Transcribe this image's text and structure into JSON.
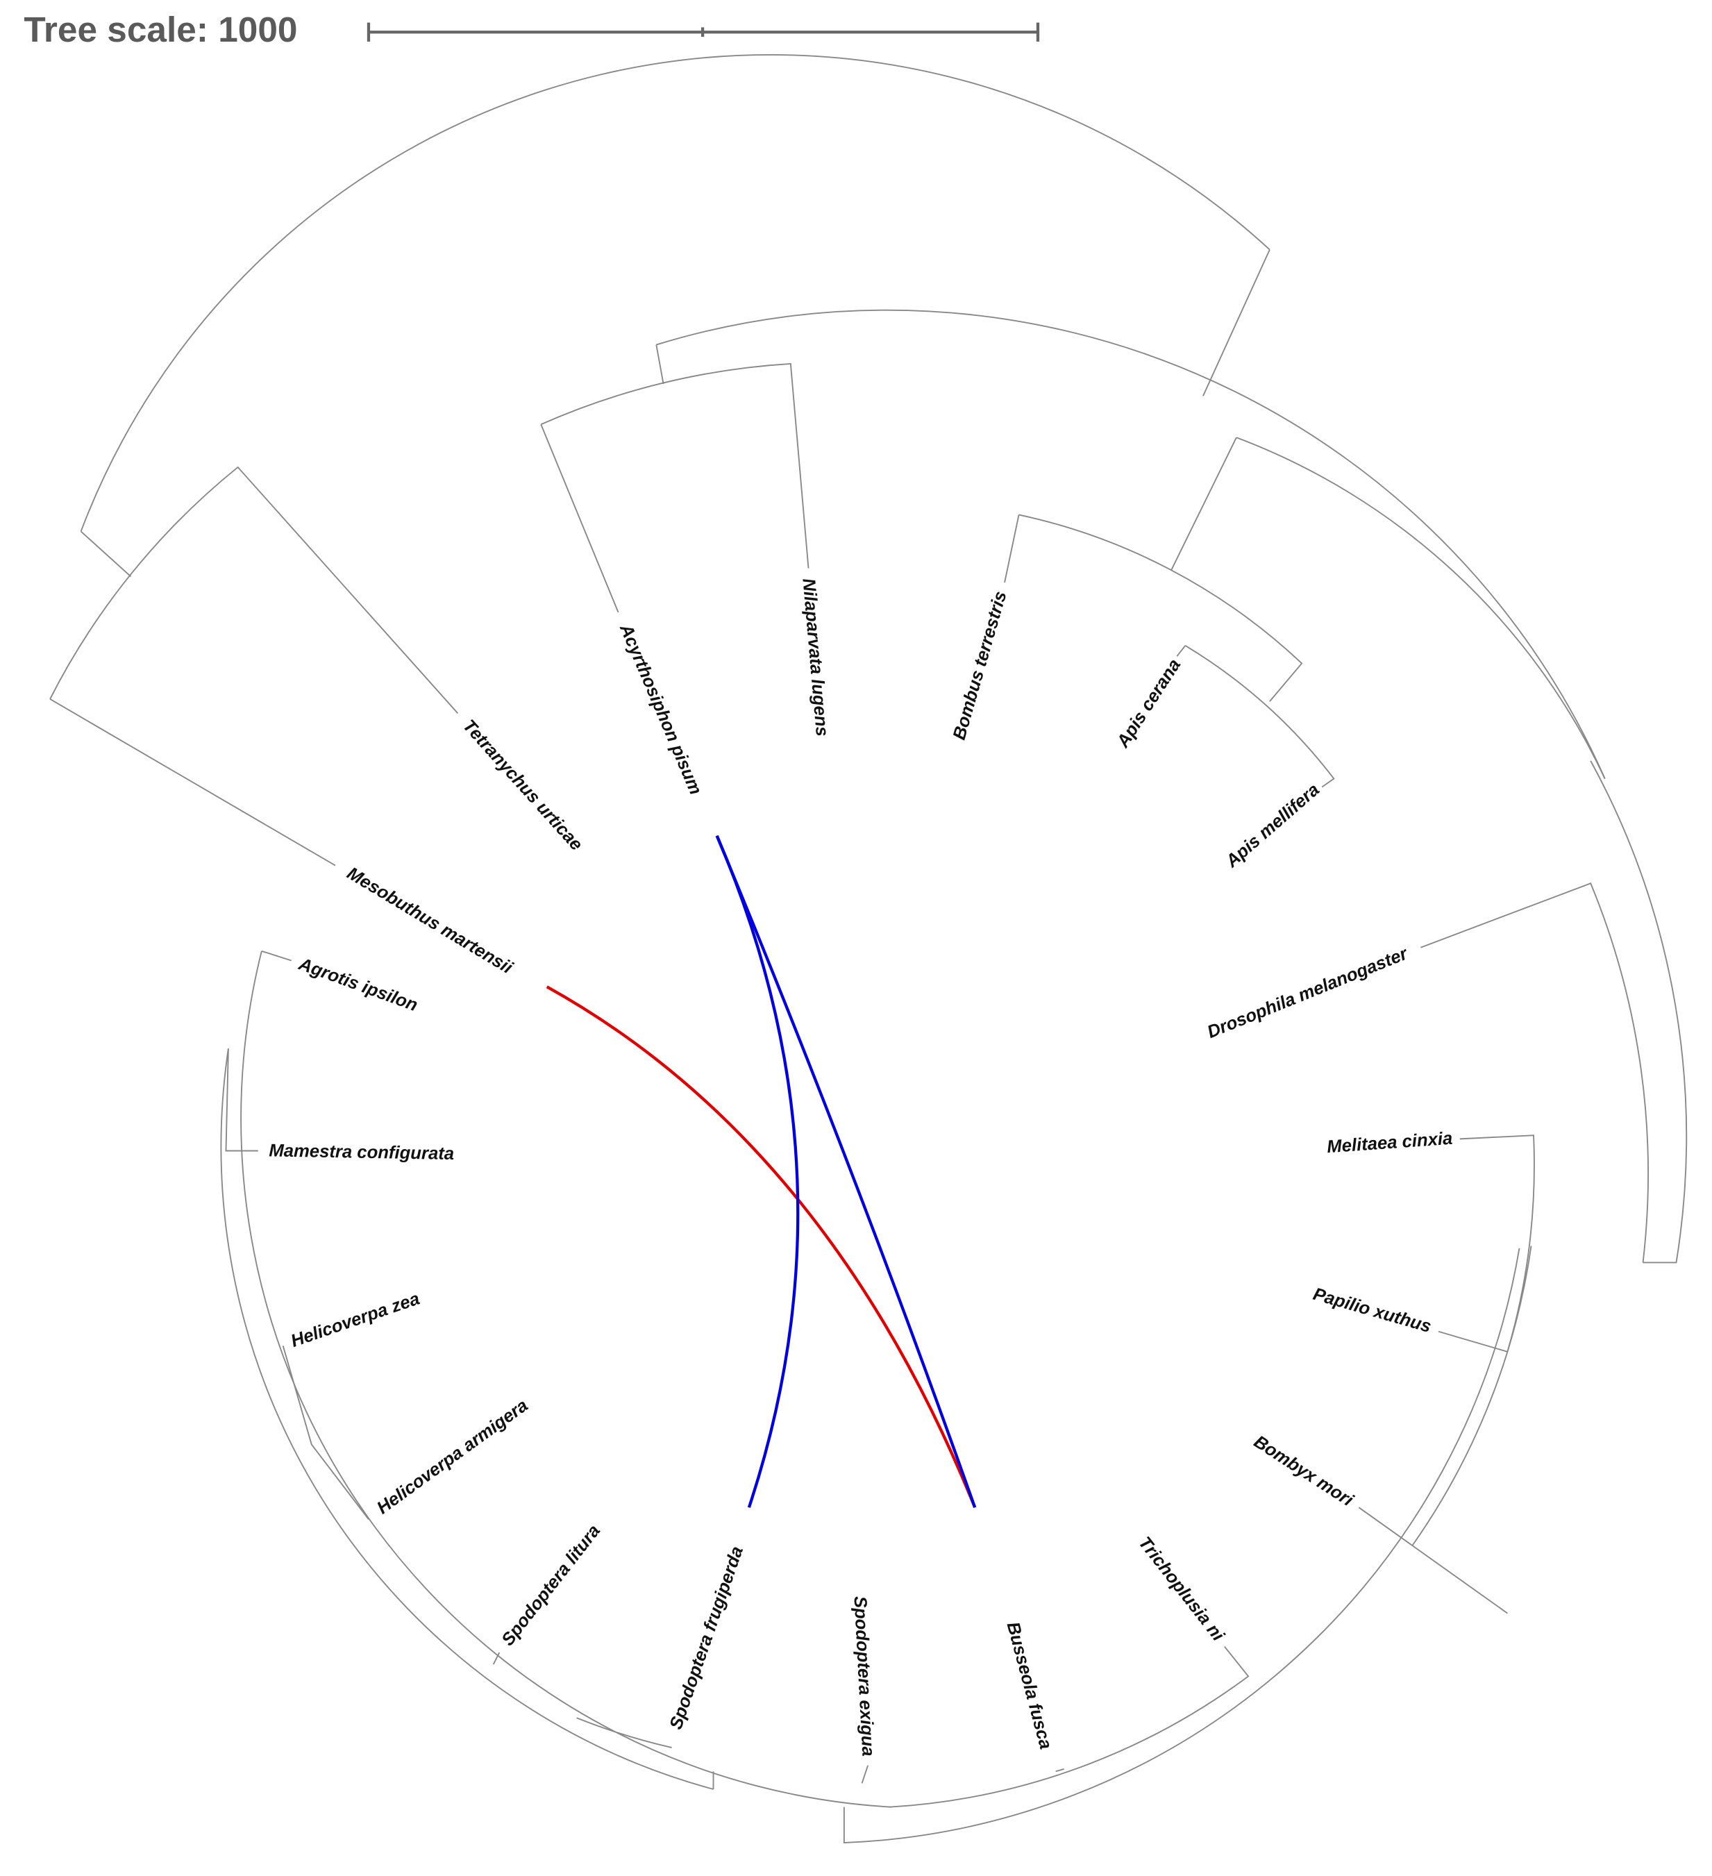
{
  "header": {
    "title": "Tree scale: 1000"
  },
  "tree": {
    "leaves": [
      "Nilaparvata lugens",
      "Acyrthosiphon pisum",
      "Bombus terrestris",
      "Apis cerana",
      "Apis mellifera",
      "Drosophila melanogaster",
      "Melitaea cinxia",
      "Papilio xuthus",
      "Bombyx mori",
      "Trichoplusia ni",
      "Busseola fusca",
      "Spodoptera exigua",
      "Spodoptera frugiperda",
      "Spodoptera litura",
      "Helicoverpa armigera",
      "Helicoverpa zea",
      "Mamestra configurata",
      "Agrotis ipsilon",
      "Mesobuthus martensii",
      "Tetranychus urticae"
    ]
  }
}
